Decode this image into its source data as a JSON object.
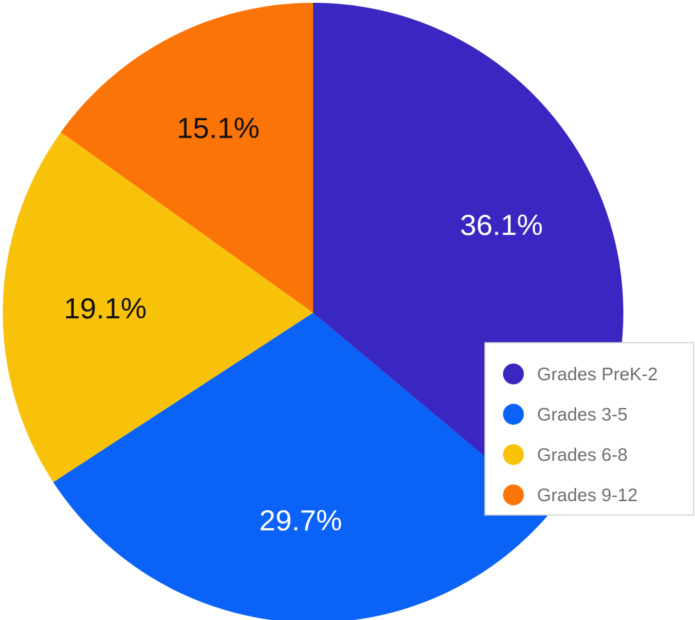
{
  "chart_data": {
    "type": "pie",
    "title": "",
    "labels": [
      "Grades PreK-2",
      "Grades 3-5",
      "Grades 6-8",
      "Grades 9-12"
    ],
    "values": [
      36.1,
      29.7,
      19.1,
      15.1
    ],
    "value_labels": [
      "36.1%",
      "29.7%",
      "19.1%",
      "15.1%"
    ],
    "colors": [
      "#3a26c0",
      "#0a63f6",
      "#f9c20a",
      "#fa7408"
    ],
    "label_colors": [
      "#ffffff",
      "#ffffff",
      "#111111",
      "#111111"
    ],
    "start_angle_deg": 0,
    "direction": "clockwise",
    "legend": {
      "position": "right",
      "entries": [
        "Grades PreK-2",
        "Grades 3-5",
        "Grades 6-8",
        "Grades 9-12"
      ]
    }
  }
}
